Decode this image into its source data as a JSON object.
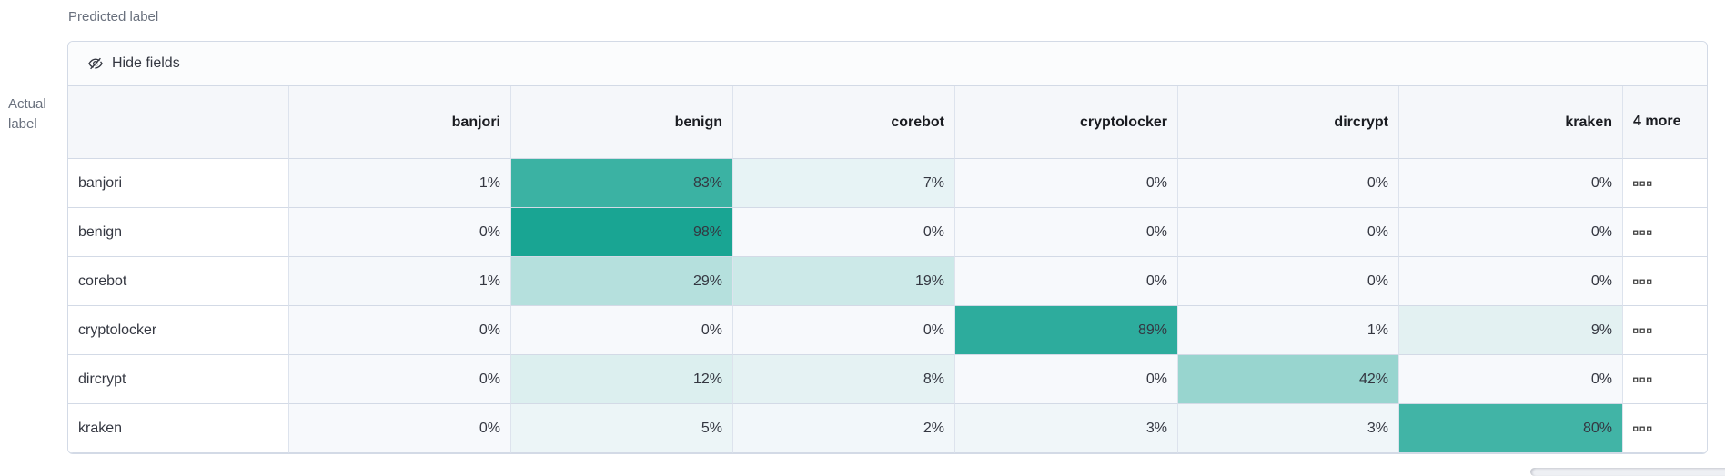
{
  "axes": {
    "predicted": "Predicted label",
    "actual": "Actual label"
  },
  "toolbar": {
    "hide_fields_label": "Hide fields"
  },
  "grid": {
    "more_header": "4 more",
    "row_actions_icon": "boxes-horizontal-icon"
  },
  "colors": {
    "heat_teal": "#14a391",
    "heat_teal_rgb": [
      20,
      163,
      145
    ],
    "zero_cell_bg": "#f7f9fc",
    "zero_cell_rgb": [
      247,
      249,
      252
    ],
    "header_bg": "#f5f7fa",
    "panel_border": "#d3dae6",
    "toolbar_bg": "#fbfcfd",
    "text": "#343741",
    "header_text": "#1a1c21",
    "muted_text": "#69707d",
    "scrollbar": "#eef0f4"
  },
  "chart_data": {
    "type": "heatmap",
    "x_axis_label": "Predicted label",
    "y_axis_label": "Actual label",
    "x_categories": [
      "banjori",
      "benign",
      "corebot",
      "cryptolocker",
      "dircrypt",
      "kraken"
    ],
    "y_categories": [
      "banjori",
      "benign",
      "corebot",
      "cryptolocker",
      "dircrypt",
      "kraken"
    ],
    "hidden_columns_note": "4 more",
    "unit": "%",
    "values": [
      [
        1,
        83,
        7,
        0,
        0,
        0
      ],
      [
        0,
        98,
        0,
        0,
        0,
        0
      ],
      [
        1,
        29,
        19,
        0,
        0,
        0
      ],
      [
        0,
        0,
        0,
        89,
        1,
        9
      ],
      [
        0,
        12,
        8,
        0,
        42,
        0
      ],
      [
        0,
        5,
        2,
        3,
        3,
        80
      ]
    ],
    "color_scale": {
      "min_color": "#f7f9fc",
      "max_color": "#14a391",
      "domain": [
        0,
        100
      ]
    }
  }
}
